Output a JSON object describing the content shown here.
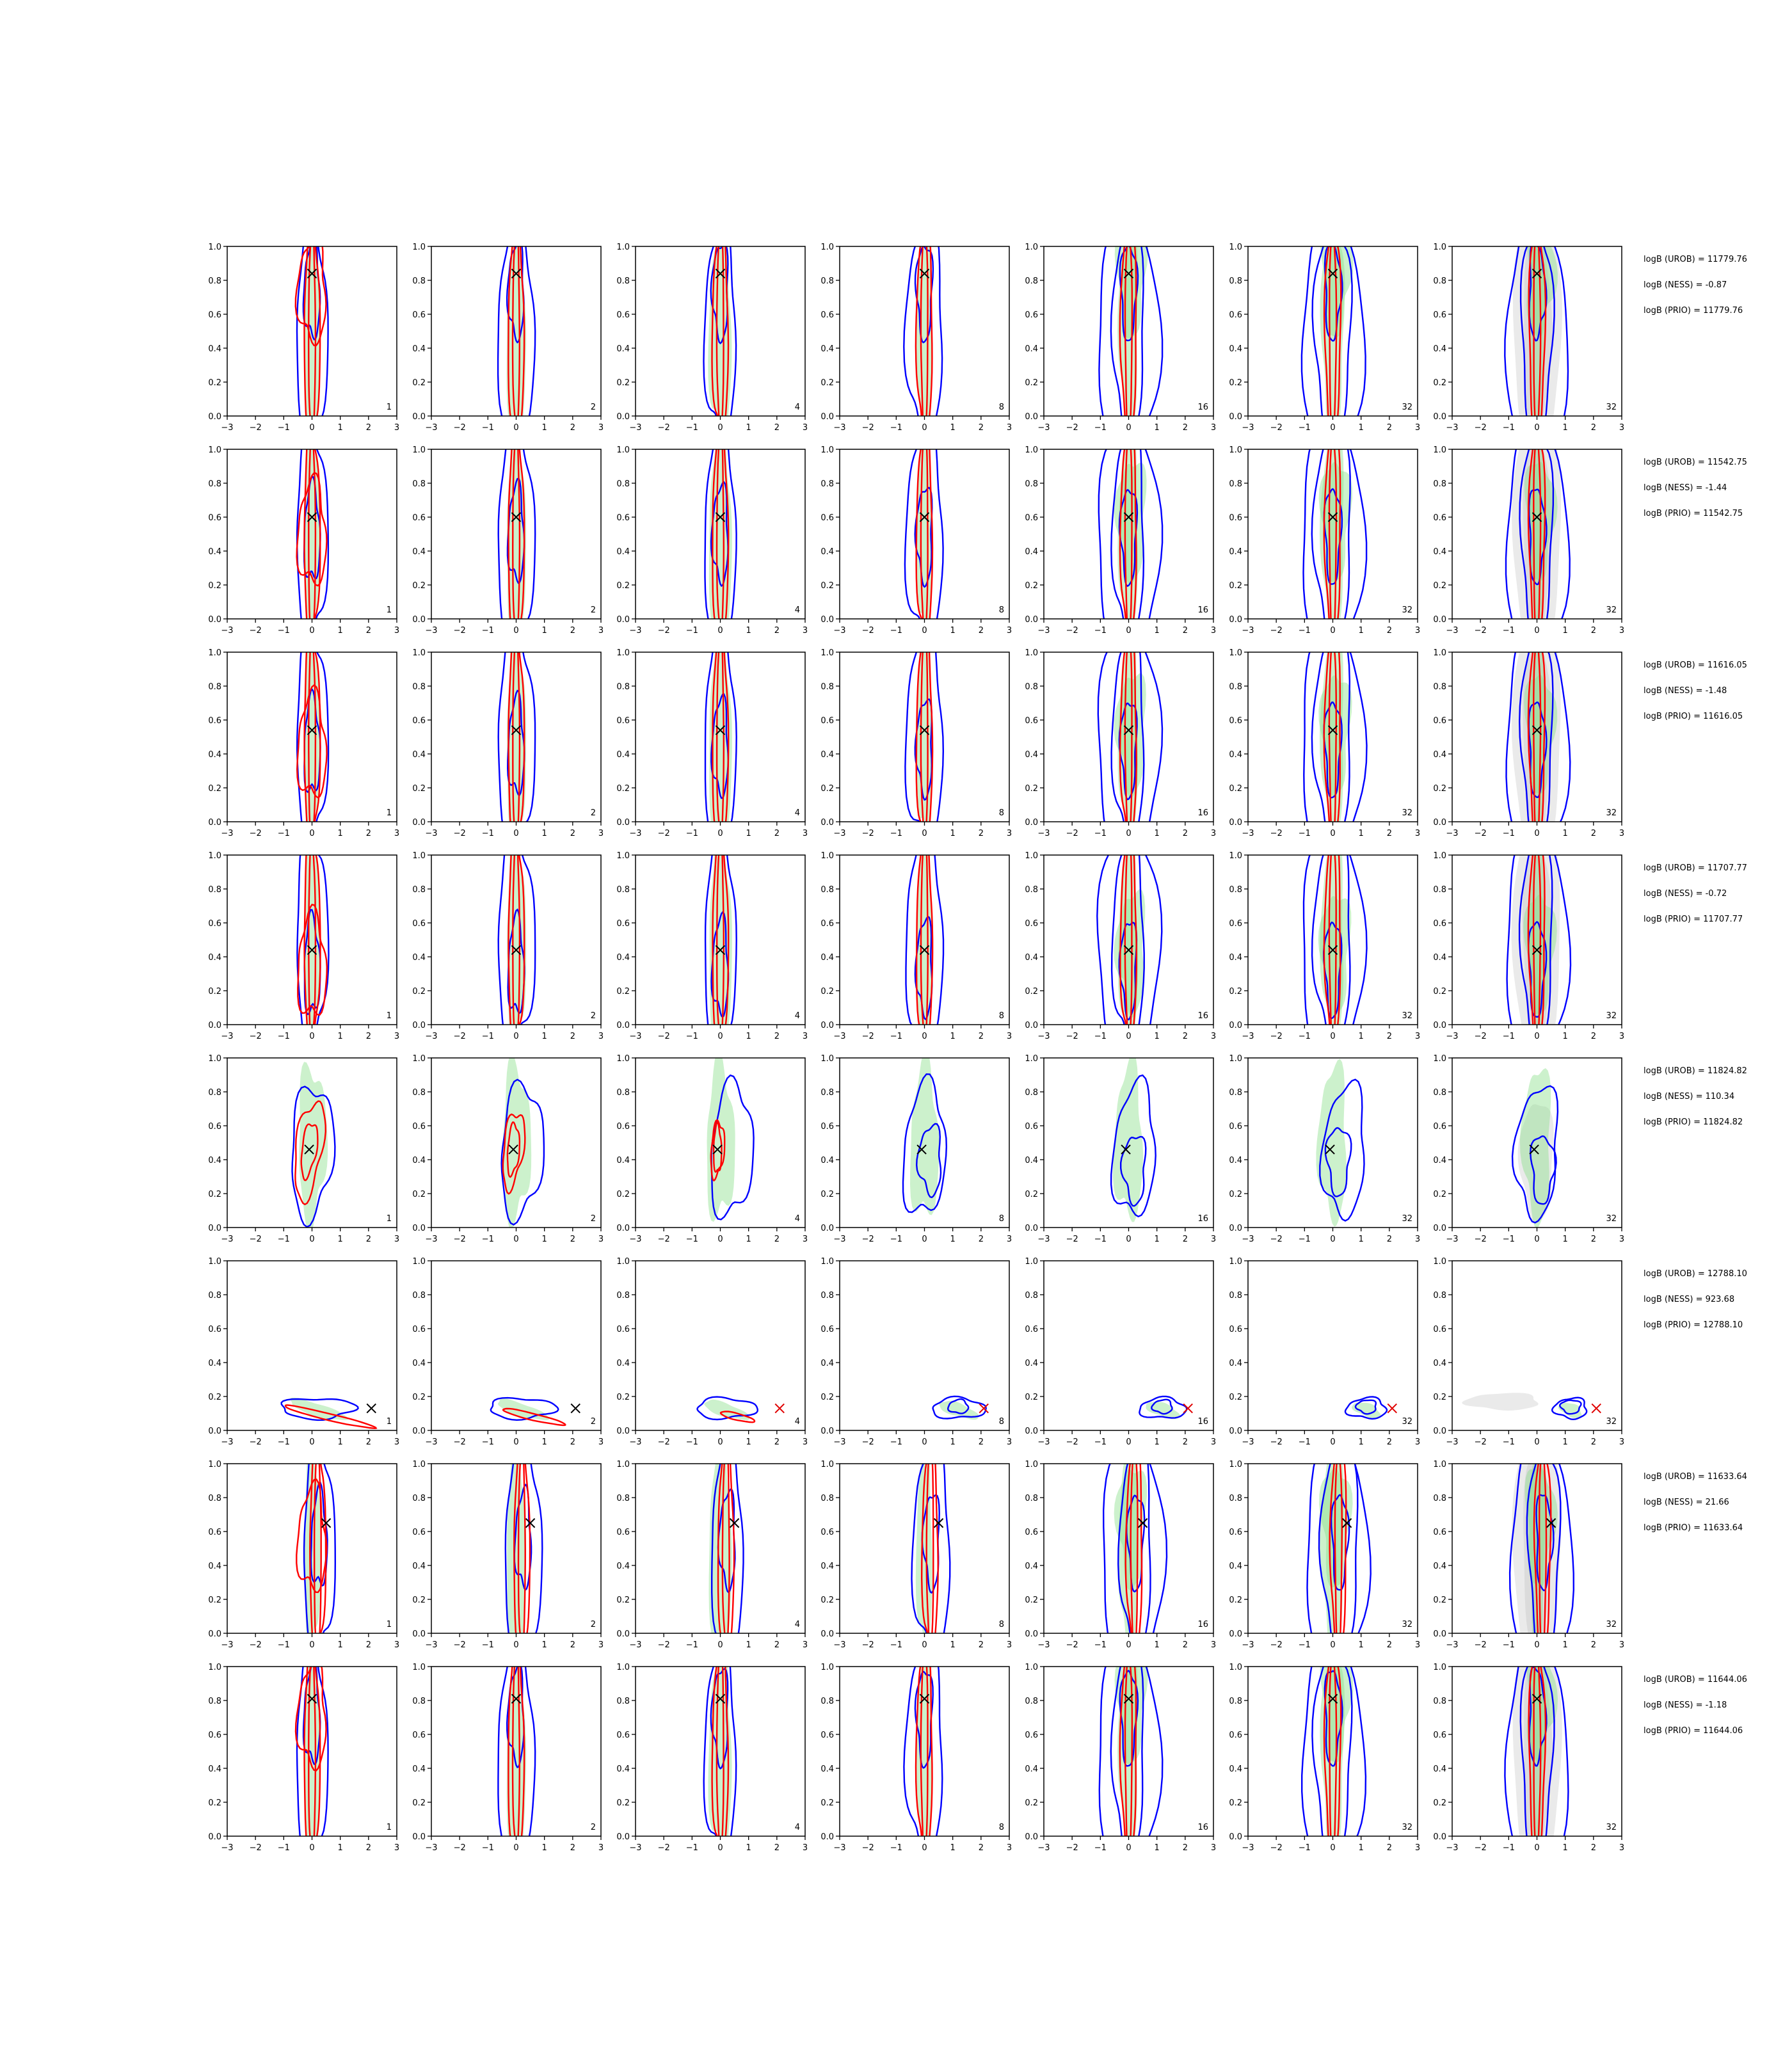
{
  "chart_data": {
    "type": "contour-grid",
    "xlim": [
      -3,
      3
    ],
    "ylim": [
      0,
      1
    ],
    "x_ticks": [
      "−3",
      "−2",
      "−1",
      "0",
      "1",
      "2",
      "3"
    ],
    "y_ticks": [
      "0.0",
      "0.2",
      "0.4",
      "0.6",
      "0.8",
      "1.0"
    ],
    "column_labels": [
      "1",
      "2",
      "4",
      "8",
      "16",
      "32",
      "32"
    ],
    "colors": {
      "blue": "#0000ff",
      "red": "#ff0000",
      "green_fill": "#8fe08f",
      "grey_fill": "#b4b4b4",
      "marker": "#000000",
      "marker_red": "#e00000"
    },
    "rows": [
      {
        "truth": [
          0.0,
          0.84
        ],
        "kind": "narrow",
        "stats": [
          "logB (UROB) = 11779.76",
          "logB (NESS) = -0.87",
          "logB (PRIO) = 11779.76"
        ]
      },
      {
        "truth": [
          0.0,
          0.6
        ],
        "kind": "narrow",
        "stats": [
          "logB (UROB) = 11542.75",
          "logB (NESS) = -1.44",
          "logB (PRIO) = 11542.75"
        ]
      },
      {
        "truth": [
          0.0,
          0.54
        ],
        "kind": "narrow",
        "stats": [
          "logB (UROB) = 11616.05",
          "logB (NESS) = -1.48",
          "logB (PRIO) = 11616.05"
        ]
      },
      {
        "truth": [
          0.0,
          0.44
        ],
        "kind": "narrow",
        "stats": [
          "logB (UROB) = 11707.77",
          "logB (NESS) = -0.72",
          "logB (PRIO) = 11707.77"
        ]
      },
      {
        "truth": [
          -0.1,
          0.46
        ],
        "kind": "blob",
        "stats": [
          "logB (UROB) = 11824.82",
          "logB (NESS) = 110.34",
          "logB (PRIO) = 11824.82"
        ]
      },
      {
        "truth": [
          2.1,
          0.13
        ],
        "kind": "flat",
        "stats": [
          "logB (UROB) = 12788.10",
          "logB (NESS) = 923.68",
          "logB (PRIO) = 12788.10"
        ]
      },
      {
        "truth": [
          0.5,
          0.65
        ],
        "kind": "narrow",
        "stats": [
          "logB (UROB) = 11633.64",
          "logB (NESS) = 21.66",
          "logB (PRIO) = 11633.64"
        ]
      },
      {
        "truth": [
          0.0,
          0.81
        ],
        "kind": "narrow",
        "stats": [
          "logB (UROB) = 11644.06",
          "logB (NESS) = -1.18",
          "logB (PRIO) = 11644.06"
        ]
      }
    ]
  }
}
